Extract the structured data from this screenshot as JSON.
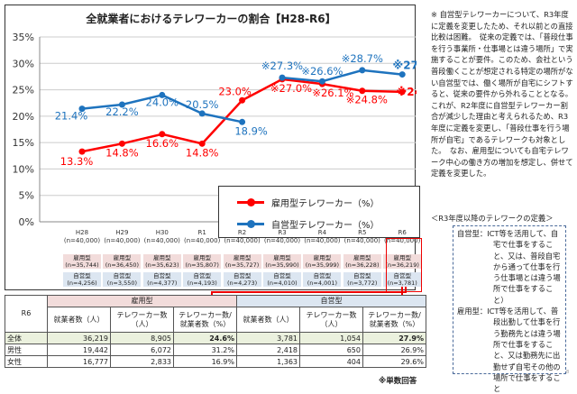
{
  "chart_data": {
    "type": "line",
    "title": "全就業者におけるテレワーカーの割合【H28-R6】",
    "categories": [
      "H28",
      "H29",
      "H30",
      "R1",
      "R2",
      "R3",
      "R4",
      "R5",
      "R6"
    ],
    "sample_labels": [
      "(n=40,000)",
      "(n=40,000)",
      "(n=40,000)",
      "(n=40,000)",
      "(n=40,000)",
      "(n=40,000)",
      "(n=40,000)",
      "(n=40,000)",
      "(n=40,000)"
    ],
    "yticks": [
      "0%",
      "5%",
      "10%",
      "15%",
      "20%",
      "25%",
      "30%",
      "35%"
    ],
    "ylim": [
      0,
      35
    ],
    "grid": true,
    "legend_position": "bottom-right",
    "series": [
      {
        "name": "雇用型テレワーカー（%）",
        "color": "#ff0000",
        "values": [
          13.3,
          14.8,
          16.6,
          14.8,
          23.0,
          27.0,
          26.1,
          24.8,
          24.6
        ],
        "labels": [
          "13.3%",
          "14.8%",
          "16.6%",
          "14.8%",
          "23.0%",
          "※27.0%",
          "※26.1%",
          "※24.8%",
          "※24.6%"
        ],
        "type_label": "雇用型",
        "n": [
          "(n=35,744)",
          "(n=36,450)",
          "(n=35,623)",
          "(n=35,807)",
          "(n=35,727)",
          "(n=35,990)",
          "(n=35,999)",
          "(n=36,228)",
          "(n=36,219)"
        ]
      },
      {
        "name": "自営型テレワーカー（%）",
        "color": "#1e73be",
        "values": [
          21.4,
          22.2,
          24.0,
          20.5,
          18.9,
          27.3,
          26.6,
          28.7,
          27.9
        ],
        "labels": [
          "21.4%",
          "22.2%",
          "24.0%",
          "20.5%",
          "18.9%",
          "※27.3%",
          "※26.6%",
          "※28.7%",
          "※27.9%"
        ],
        "type_label": "自営型",
        "n": [
          "(n=4,256)",
          "(n=3,550)",
          "(n=4,377)",
          "(n=4,193)",
          "(n=4,273)",
          "(n=4,010)",
          "(n=4,001)",
          "(n=3,772)",
          "(n=3,781)"
        ]
      }
    ]
  },
  "table": {
    "corner": "R6",
    "group1": "雇用型",
    "group2": "自営型",
    "cols": [
      "就業者数（人）",
      "テレワーカー数（人）",
      "テレワーカー数/就業者数（%）",
      "就業者数（人）",
      "テレワーカー数（人）",
      "テレワーカー数/就業者数（%）"
    ],
    "rows": [
      {
        "label": "全体",
        "cells": [
          "36,219",
          "8,905",
          "24.6%",
          "3,781",
          "1,054",
          "27.9%"
        ]
      },
      {
        "label": "男性",
        "cells": [
          "19,442",
          "6,072",
          "31.2%",
          "2,418",
          "650",
          "26.9%"
        ]
      },
      {
        "label": "女性",
        "cells": [
          "16,777",
          "2,833",
          "16.9%",
          "1,363",
          "404",
          "29.6%"
        ]
      }
    ],
    "footnote": "※単数回答"
  },
  "note": "※ 自営型テレワーカーについて、R3年度に定義を変更したため、それ以前との直接比較は困難。　従来の定義では、「普段仕事を行う事業所・仕事場とは違う場所」で実施することが要件。このため、会社という普段働くことが想定される特定の場所がない自営型では、働く場所が自宅にシフトすると、従来の要件から外れることとなる。これが、R2年度に自営型テレワーカー割合が減少した理由と考えられるため、R3年度に定義を変更し、「普段仕事を行う場所が自宅」であるテレワークも対象とした。　なお、雇用型についても自宅テレワーク中心の働き方の増加を想定し、併せて定義を変更した。",
  "definition": {
    "heading": "＜R3年度以降のテレワークの定義＞",
    "self": "自営型：ICT等を活用して、自宅で仕事をすること、又は、普段自宅から通って仕事を行う仕事場とは違う場所で仕事をすること）",
    "employed": "雇用型：ICT等を活用して、普段出勤して仕事を行う勤務先とは違う場所で仕事をすること、又は勤務先に出勤せず自宅その他の場所で仕事をすること"
  },
  "page_number": "8"
}
